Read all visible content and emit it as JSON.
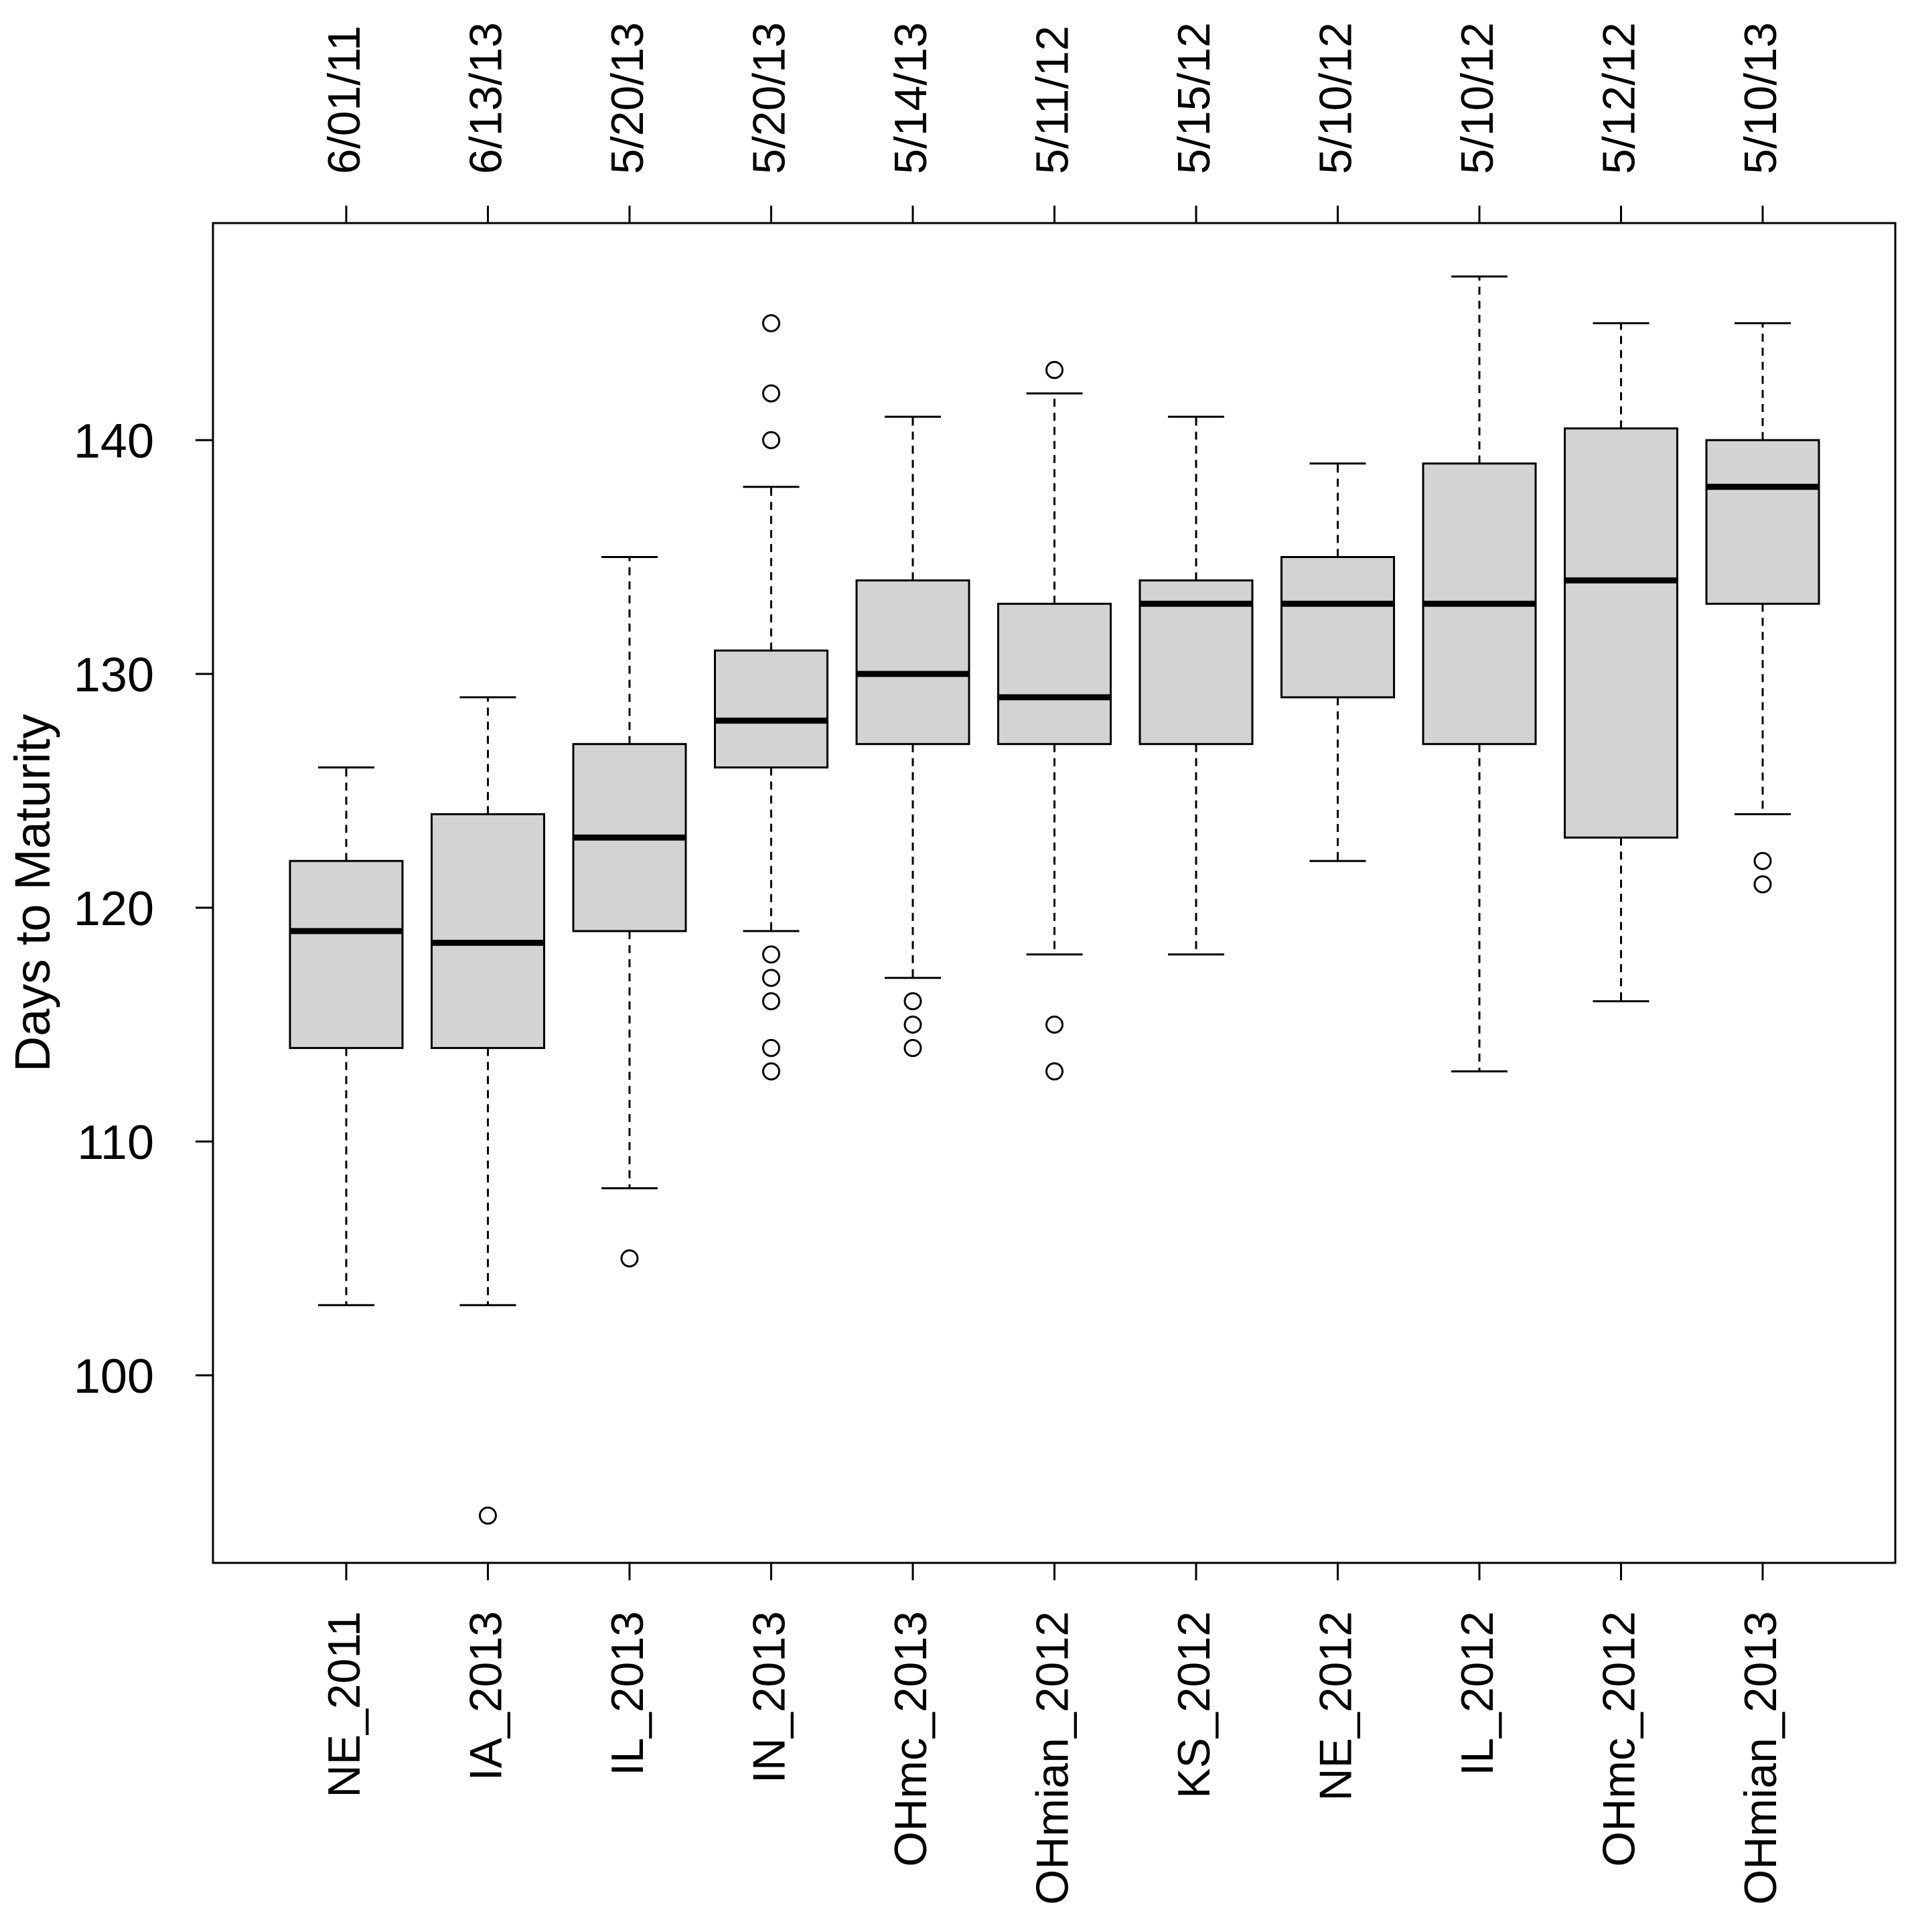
{
  "chart_data": {
    "type": "boxplot",
    "title": "",
    "xlabel": "",
    "ylabel": "Days to Maturity",
    "ylim": [
      93,
      148
    ],
    "yticks": [
      100,
      110,
      120,
      130,
      140
    ],
    "grid": false,
    "categories": [
      "NE_2011",
      "IA_2013",
      "IL_2013",
      "IN_2013",
      "OHmc_2013",
      "OHmian_2012",
      "KS_2012",
      "NE_2012",
      "IL_2012",
      "OHmc_2012",
      "OHmian_2013"
    ],
    "planting_dates": [
      "6/01/11",
      "6/13/13",
      "5/20/13",
      "5/20/13",
      "5/14/13",
      "5/11/12",
      "5/15/12",
      "5/10/12",
      "5/10/12",
      "5/12/12",
      "5/10/13"
    ],
    "boxes": [
      {
        "whisker_low": 103,
        "q1": 114,
        "median": 119,
        "q3": 122,
        "whisker_high": 126,
        "outliers": []
      },
      {
        "whisker_low": 103,
        "q1": 114,
        "median": 118.5,
        "q3": 124,
        "whisker_high": 129,
        "outliers": [
          94
        ]
      },
      {
        "whisker_low": 108,
        "q1": 119,
        "median": 123,
        "q3": 127,
        "whisker_high": 135,
        "outliers": [
          105
        ]
      },
      {
        "whisker_low": 119,
        "q1": 126,
        "median": 128,
        "q3": 131,
        "whisker_high": 138,
        "outliers": [
          145,
          142,
          140,
          118,
          117,
          116,
          114,
          113
        ]
      },
      {
        "whisker_low": 117,
        "q1": 127,
        "median": 130,
        "q3": 134,
        "whisker_high": 141,
        "outliers": [
          116,
          115,
          114
        ]
      },
      {
        "whisker_low": 118,
        "q1": 127,
        "median": 129,
        "q3": 133,
        "whisker_high": 142,
        "outliers": [
          143,
          115,
          113
        ]
      },
      {
        "whisker_low": 118,
        "q1": 127,
        "median": 133,
        "q3": 134,
        "whisker_high": 141,
        "outliers": []
      },
      {
        "whisker_low": 122,
        "q1": 129,
        "median": 133,
        "q3": 135,
        "whisker_high": 139,
        "outliers": []
      },
      {
        "whisker_low": 113,
        "q1": 127,
        "median": 133,
        "q3": 139,
        "whisker_high": 147,
        "outliers": []
      },
      {
        "whisker_low": 116,
        "q1": 123,
        "median": 134,
        "q3": 140.5,
        "whisker_high": 145,
        "outliers": []
      },
      {
        "whisker_low": 124,
        "q1": 133,
        "median": 138,
        "q3": 140,
        "whisker_high": 145,
        "outliers": [
          122,
          121
        ]
      }
    ],
    "colors": {
      "box_fill": "#d3d3d3",
      "stroke": "#000000",
      "background": "#ffffff"
    }
  }
}
